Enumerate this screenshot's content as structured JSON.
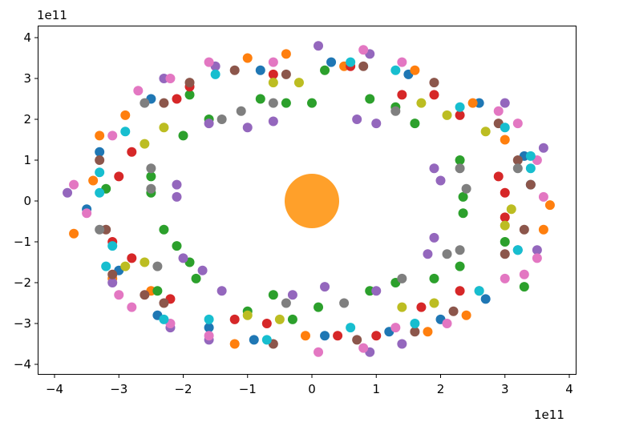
{
  "chart_data": {
    "type": "scatter",
    "title": "",
    "xlabel": "",
    "ylabel": "",
    "x_offset_label": "1e11",
    "y_offset_label": "1e11",
    "xlim": [
      -4.26,
      4.1
    ],
    "ylim": [
      -4.3,
      4.3
    ],
    "xticks": [
      "-4",
      "-3",
      "-2",
      "-1",
      "0",
      "1",
      "2",
      "3",
      "4"
    ],
    "yticks": [
      "4",
      "3",
      "2",
      "1",
      "0",
      "-1",
      "-2",
      "-3",
      "-4"
    ],
    "grid": false,
    "series": [
      {
        "color": "#1f77b4",
        "points": [
          [
            -3.3,
            1.2
          ],
          [
            -3.5,
            -0.2
          ],
          [
            -3.0,
            -1.7
          ],
          [
            -2.4,
            -2.8
          ],
          [
            -1.6,
            -3.1
          ],
          [
            -0.9,
            -3.4
          ],
          [
            0.2,
            -3.3
          ],
          [
            1.2,
            -3.2
          ],
          [
            2.0,
            -2.9
          ],
          [
            2.7,
            -2.4
          ],
          [
            3.2,
            -1.2
          ],
          [
            3.4,
            0.4
          ],
          [
            3.3,
            1.1
          ],
          [
            2.6,
            2.4
          ],
          [
            1.5,
            3.1
          ],
          [
            0.3,
            3.4
          ],
          [
            -0.8,
            3.2
          ],
          [
            -2.5,
            2.5
          ]
        ]
      },
      {
        "color": "#ff7f0e",
        "points": [
          [
            -3.3,
            1.6
          ],
          [
            -3.7,
            -0.8
          ],
          [
            -3.1,
            -1.9
          ],
          [
            -2.5,
            -2.2
          ],
          [
            -1.2,
            -3.5
          ],
          [
            -0.1,
            -3.3
          ],
          [
            1.8,
            -3.2
          ],
          [
            2.4,
            -2.8
          ],
          [
            3.6,
            -0.7
          ],
          [
            3.7,
            -0.1
          ],
          [
            3.0,
            1.5
          ],
          [
            2.5,
            2.4
          ],
          [
            1.6,
            3.2
          ],
          [
            0.5,
            3.3
          ],
          [
            -0.4,
            3.6
          ],
          [
            -1.0,
            3.5
          ],
          [
            -2.9,
            2.1
          ],
          [
            -3.4,
            0.5
          ]
        ]
      },
      {
        "color": "#2ca02c",
        "points": [
          [
            0,
            2.4
          ],
          [
            -0.4,
            2.4
          ],
          [
            -0.8,
            2.5
          ],
          [
            -1.6,
            2.0
          ],
          [
            -2.0,
            1.6
          ],
          [
            -2.5,
            0.6
          ],
          [
            -2.5,
            0.2
          ],
          [
            -2.3,
            -0.7
          ],
          [
            -2.1,
            -1.1
          ],
          [
            -1.9,
            -1.5
          ],
          [
            -1.8,
            -1.9
          ],
          [
            -1.0,
            -2.7
          ],
          [
            -0.6,
            -2.3
          ],
          [
            -0.3,
            -2.9
          ],
          [
            0.1,
            -2.6
          ],
          [
            0.9,
            -2.2
          ],
          [
            1.3,
            -2.0
          ],
          [
            1.9,
            -1.9
          ],
          [
            2.3,
            -1.6
          ],
          [
            2.35,
            -0.3
          ],
          [
            2.35,
            0.1
          ],
          [
            2.3,
            1.0
          ],
          [
            1.6,
            1.9
          ],
          [
            1.3,
            2.3
          ],
          [
            0.9,
            2.5
          ],
          [
            0.2,
            3.2
          ],
          [
            -1.9,
            2.6
          ],
          [
            -3.2,
            0.3
          ],
          [
            3.0,
            -1.0
          ],
          [
            3.3,
            -2.1
          ],
          [
            -2.4,
            -2.2
          ]
        ]
      },
      {
        "color": "#d62728",
        "points": [
          [
            -3.0,
            0.6
          ],
          [
            -2.8,
            1.2
          ],
          [
            -3.1,
            -1.0
          ],
          [
            -2.8,
            -1.4
          ],
          [
            -2.2,
            -2.4
          ],
          [
            -1.2,
            -2.9
          ],
          [
            -0.7,
            -3.0
          ],
          [
            0.4,
            -3.3
          ],
          [
            1.0,
            -3.3
          ],
          [
            1.7,
            -2.6
          ],
          [
            2.3,
            -2.2
          ],
          [
            3.0,
            -0.4
          ],
          [
            3.0,
            0.2
          ],
          [
            2.9,
            0.6
          ],
          [
            2.3,
            2.1
          ],
          [
            1.9,
            2.6
          ],
          [
            1.4,
            2.6
          ],
          [
            0.6,
            3.3
          ],
          [
            -0.6,
            3.1
          ],
          [
            -1.9,
            2.8
          ],
          [
            -2.1,
            2.5
          ]
        ]
      },
      {
        "color": "#9467bd",
        "points": [
          [
            -2.1,
            0.4
          ],
          [
            -2.1,
            0.1
          ],
          [
            -1.6,
            1.9
          ],
          [
            -1.0,
            1.8
          ],
          [
            -0.6,
            1.95
          ],
          [
            0.7,
            2.0
          ],
          [
            1.0,
            1.9
          ],
          [
            1.9,
            0.8
          ],
          [
            2.0,
            0.5
          ],
          [
            1.9,
            -0.9
          ],
          [
            1.8,
            -1.3
          ],
          [
            1.0,
            -2.2
          ],
          [
            0.2,
            -2.1
          ],
          [
            -0.3,
            -2.3
          ],
          [
            -1.4,
            -2.2
          ],
          [
            -1.7,
            -1.7
          ],
          [
            -2.0,
            -1.4
          ],
          [
            -3.8,
            0.2
          ],
          [
            -3.1,
            -2.0
          ],
          [
            -2.2,
            -3.1
          ],
          [
            -1.6,
            -3.4
          ],
          [
            0.1,
            3.8
          ],
          [
            0.9,
            3.6
          ],
          [
            3.0,
            2.4
          ],
          [
            3.6,
            1.3
          ],
          [
            3.5,
            -1.2
          ],
          [
            1.4,
            -3.5
          ],
          [
            0.9,
            -3.7
          ],
          [
            -2.3,
            3.0
          ],
          [
            -1.5,
            3.3
          ]
        ]
      },
      {
        "color": "#8c564b",
        "points": [
          [
            -3.3,
            1.0
          ],
          [
            -3.2,
            -0.7
          ],
          [
            -3.1,
            -1.8
          ],
          [
            -2.6,
            -2.3
          ],
          [
            -2.3,
            -2.5
          ],
          [
            -0.6,
            -3.5
          ],
          [
            0.7,
            -3.4
          ],
          [
            1.6,
            -3.2
          ],
          [
            2.2,
            -2.7
          ],
          [
            3.0,
            -1.3
          ],
          [
            3.3,
            -0.7
          ],
          [
            3.4,
            0.4
          ],
          [
            3.2,
            1.0
          ],
          [
            2.9,
            1.9
          ],
          [
            1.9,
            2.9
          ],
          [
            0.8,
            3.3
          ],
          [
            -0.4,
            3.1
          ],
          [
            -1.2,
            3.2
          ],
          [
            -1.9,
            2.9
          ],
          [
            -2.3,
            2.4
          ]
        ]
      },
      {
        "color": "#e377c2",
        "points": [
          [
            -3.7,
            0.4
          ],
          [
            -3.5,
            -0.3
          ],
          [
            -3.0,
            -2.3
          ],
          [
            -2.8,
            -2.6
          ],
          [
            -2.2,
            -3.0
          ],
          [
            -1.6,
            -3.3
          ],
          [
            0.1,
            -3.7
          ],
          [
            0.8,
            -3.6
          ],
          [
            1.3,
            -3.1
          ],
          [
            2.1,
            -3.0
          ],
          [
            3.0,
            -1.9
          ],
          [
            3.3,
            -1.8
          ],
          [
            3.5,
            -1.4
          ],
          [
            3.6,
            0.1
          ],
          [
            3.5,
            1.0
          ],
          [
            3.2,
            1.9
          ],
          [
            2.9,
            2.2
          ],
          [
            1.4,
            3.4
          ],
          [
            0.8,
            3.7
          ],
          [
            -0.6,
            3.4
          ],
          [
            -1.6,
            3.4
          ],
          [
            -2.2,
            3.0
          ],
          [
            -2.7,
            2.7
          ],
          [
            -3.1,
            1.6
          ]
        ]
      },
      {
        "color": "#7f7f7f",
        "points": [
          [
            -2.5,
            0.8
          ],
          [
            -2.5,
            0.3
          ],
          [
            -2.4,
            -1.6
          ],
          [
            -0.4,
            -2.5
          ],
          [
            0.5,
            -2.5
          ],
          [
            1.4,
            -1.9
          ],
          [
            2.1,
            -1.3
          ],
          [
            2.3,
            -1.2
          ],
          [
            2.4,
            0.3
          ],
          [
            2.3,
            0.8
          ],
          [
            1.3,
            2.2
          ],
          [
            -0.6,
            2.4
          ],
          [
            -1.1,
            2.2
          ],
          [
            -1.4,
            2.0
          ],
          [
            -2.6,
            2.4
          ],
          [
            -3.3,
            -0.7
          ],
          [
            2.6,
            -2.2
          ],
          [
            3.2,
            0.8
          ]
        ]
      },
      {
        "color": "#bcbd22",
        "points": [
          [
            -2.6,
            1.4
          ],
          [
            -2.9,
            -1.6
          ],
          [
            -2.6,
            -1.5
          ],
          [
            -1.0,
            -2.8
          ],
          [
            -0.5,
            -2.9
          ],
          [
            1.4,
            -2.6
          ],
          [
            1.9,
            -2.5
          ],
          [
            3.0,
            -0.6
          ],
          [
            3.1,
            -0.2
          ],
          [
            2.7,
            1.7
          ],
          [
            2.1,
            2.1
          ],
          [
            1.7,
            2.4
          ],
          [
            -0.6,
            2.9
          ],
          [
            -0.2,
            2.9
          ],
          [
            -2.3,
            1.8
          ]
        ]
      },
      {
        "color": "#17becf",
        "points": [
          [
            -3.3,
            0.2
          ],
          [
            -3.1,
            -1.1
          ],
          [
            -3.2,
            -1.6
          ],
          [
            -2.3,
            -2.9
          ],
          [
            -1.6,
            -2.9
          ],
          [
            -0.7,
            -3.4
          ],
          [
            0.6,
            -3.1
          ],
          [
            1.6,
            -3.0
          ],
          [
            2.6,
            -2.2
          ],
          [
            3.2,
            -1.2
          ],
          [
            3.4,
            0.8
          ],
          [
            3.4,
            1.1
          ],
          [
            3.0,
            1.8
          ],
          [
            2.3,
            2.3
          ],
          [
            1.3,
            3.2
          ],
          [
            0.6,
            3.4
          ],
          [
            -1.5,
            3.1
          ],
          [
            -2.9,
            1.7
          ],
          [
            -3.3,
            0.7
          ]
        ]
      }
    ],
    "central_body": {
      "x": 0,
      "y": 0,
      "color": "#ffa02a"
    }
  }
}
